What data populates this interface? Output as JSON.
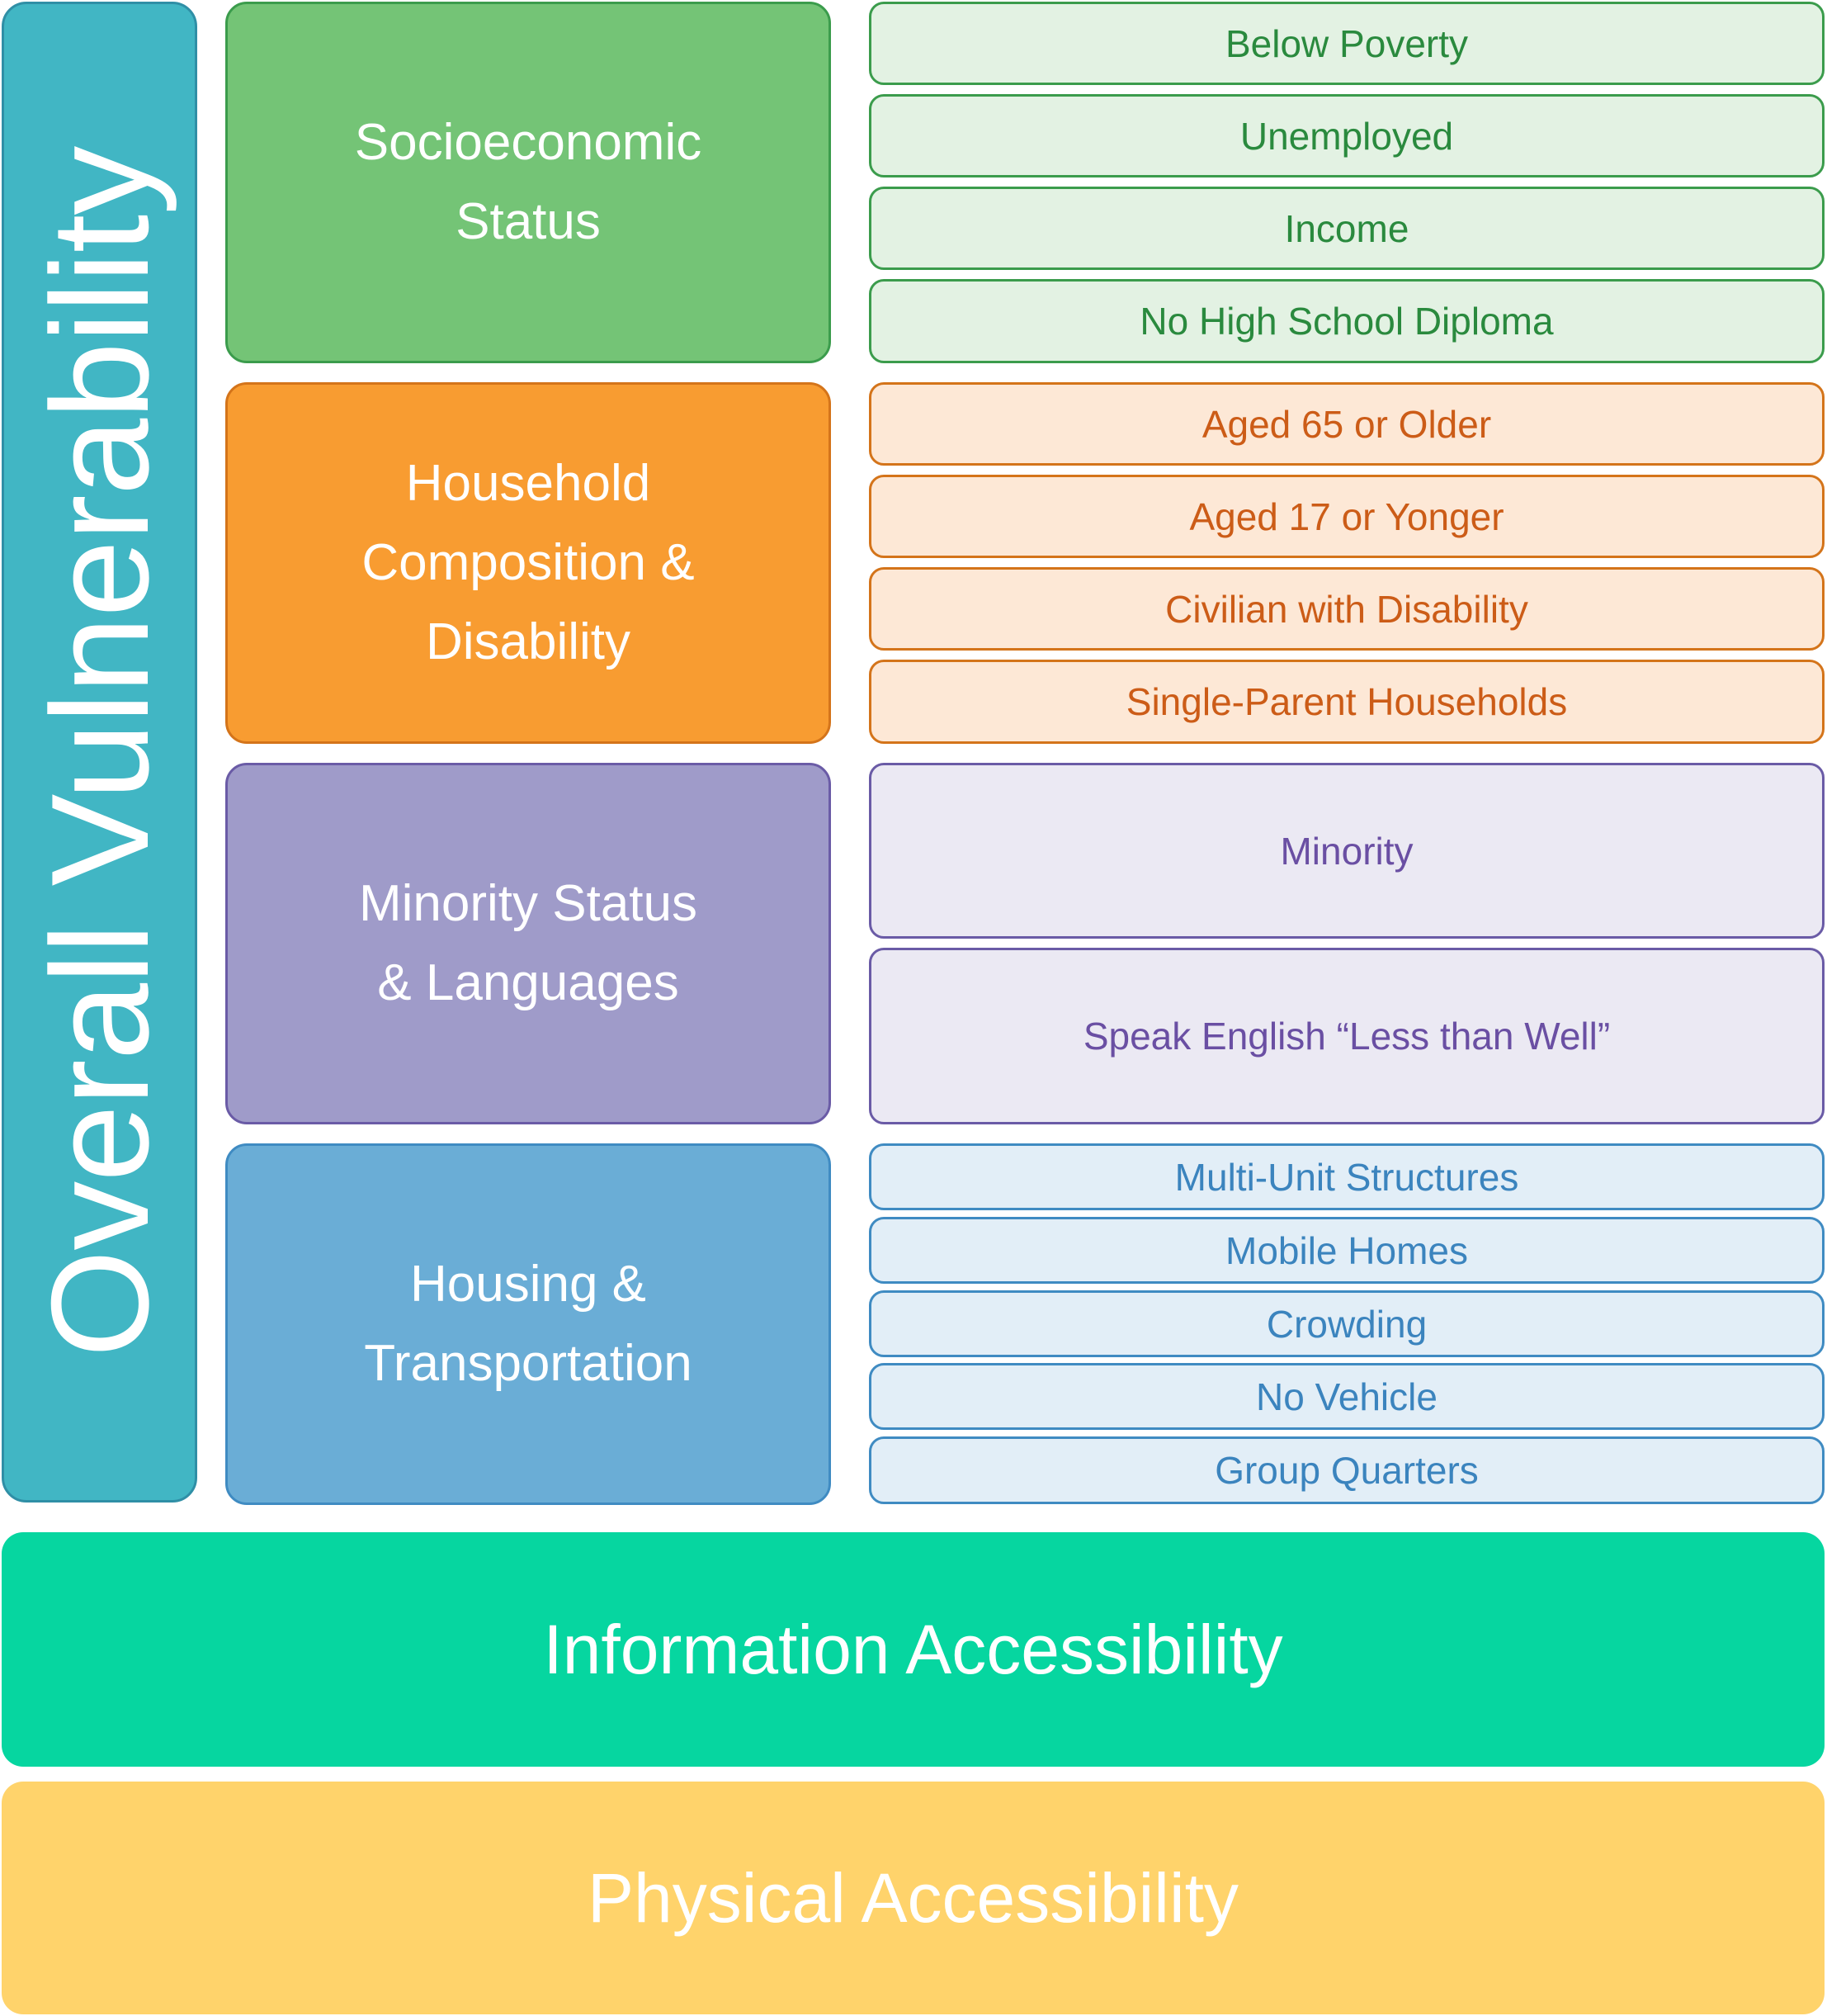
{
  "overall": {
    "label": "Overall Vulnerability",
    "color": "#41b6c4"
  },
  "categories": [
    {
      "lines": [
        "Socioeconomic",
        "Status"
      ],
      "color": "#74c476",
      "indicators": [
        "Below Poverty",
        "Unemployed",
        "Income",
        "No High School Diploma"
      ]
    },
    {
      "lines": [
        "Household",
        "Composition &",
        "Disability"
      ],
      "color": "#f89c31",
      "indicators": [
        "Aged 65 or Older",
        "Aged 17 or Yonger",
        "Civilian with Disability",
        "Single-Parent Households"
      ]
    },
    {
      "lines": [
        "Minority Status",
        "& Languages"
      ],
      "color": "#9f9bc9",
      "indicators": [
        "Minority",
        "Speak English “Less than Well”"
      ]
    },
    {
      "lines": [
        "Housing &",
        "Transportation"
      ],
      "color": "#6aadd6",
      "indicators": [
        "Multi-Unit Structures",
        "Mobile Homes",
        "Crowding",
        "No Vehicle",
        "Group Quarters"
      ]
    }
  ],
  "bottom": {
    "information": {
      "label": "Information Accessibility",
      "color": "#06d6a0"
    },
    "physical": {
      "label": "Physical Accessibility",
      "color": "#ffd36b"
    }
  }
}
